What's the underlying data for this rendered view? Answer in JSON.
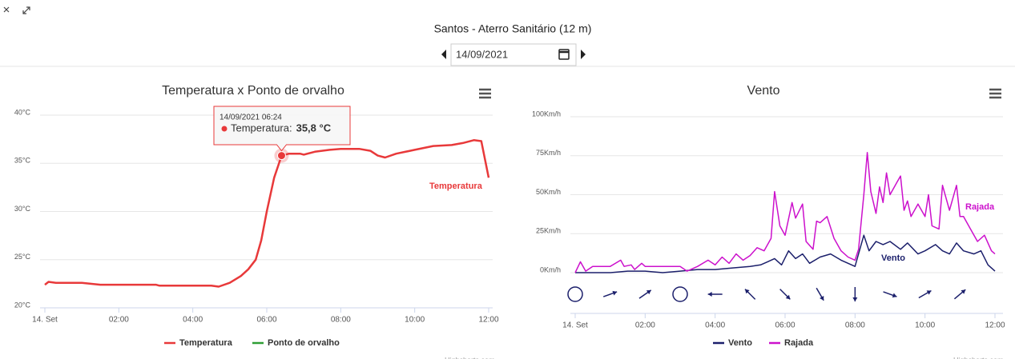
{
  "header": {
    "title": "Santos - Aterro Sanitário (12 m)",
    "date": "14/09/2021"
  },
  "credits": "Highcharts.com",
  "chart_data": [
    {
      "type": "line",
      "title": "Temperatura x Ponto de orvalho",
      "xlim": [
        0,
        12
      ],
      "ylim": [
        20,
        40
      ],
      "xticks": [
        {
          "value": 0,
          "label": "14. Set"
        },
        {
          "value": 2,
          "label": "02:00"
        },
        {
          "value": 4,
          "label": "04:00"
        },
        {
          "value": 6,
          "label": "06:00"
        },
        {
          "value": 8,
          "label": "08:00"
        },
        {
          "value": 10,
          "label": "10:00"
        },
        {
          "value": 12,
          "label": "12:00"
        }
      ],
      "yticks": [
        {
          "value": 20,
          "label": "20°C"
        },
        {
          "value": 25,
          "label": "25°C"
        },
        {
          "value": 30,
          "label": "30°C"
        },
        {
          "value": 35,
          "label": "35°C"
        },
        {
          "value": 40,
          "label": "40°C"
        }
      ],
      "grid": true,
      "series": [
        {
          "name": "Temperatura",
          "color": "#e8393a",
          "x": [
            0,
            0.1,
            0.3,
            1,
            1.5,
            2,
            3,
            3.1,
            4,
            4.5,
            4.7,
            5,
            5.3,
            5.5,
            5.7,
            5.85,
            6,
            6.2,
            6.4,
            6.6,
            6.9,
            7,
            7.3,
            7.7,
            8,
            8.5,
            8.8,
            9,
            9.2,
            9.5,
            10,
            10.5,
            11,
            11.3,
            11.6,
            11.8,
            12
          ],
          "values": [
            22.4,
            22.7,
            22.6,
            22.6,
            22.4,
            22.4,
            22.4,
            22.3,
            22.3,
            22.3,
            22.2,
            22.6,
            23.3,
            24.0,
            25.0,
            27.0,
            30.0,
            33.5,
            35.8,
            36.0,
            36.0,
            35.9,
            36.2,
            36.4,
            36.5,
            36.5,
            36.3,
            35.8,
            35.6,
            36.0,
            36.4,
            36.8,
            36.9,
            37.1,
            37.4,
            37.3,
            33.5
          ]
        },
        {
          "name": "Ponto de orvalho",
          "color": "#2e9e35",
          "x": [],
          "values": []
        }
      ],
      "tooltip": {
        "time": "14/09/2021 06:24",
        "series_label": "Temperatura:",
        "value_label": "35,8 °C",
        "x": 6.4,
        "value": 35.8
      }
    },
    {
      "type": "line",
      "title": "Vento",
      "xlim": [
        0,
        12
      ],
      "ylim": [
        0,
        100
      ],
      "xticks": [
        {
          "value": 0,
          "label": "14. Set"
        },
        {
          "value": 2,
          "label": "02:00"
        },
        {
          "value": 4,
          "label": "04:00"
        },
        {
          "value": 6,
          "label": "06:00"
        },
        {
          "value": 8,
          "label": "08:00"
        },
        {
          "value": 10,
          "label": "10:00"
        },
        {
          "value": 12,
          "label": "12:00"
        }
      ],
      "yticks": [
        {
          "value": 0,
          "label": "0Km/h"
        },
        {
          "value": 25,
          "label": "25Km/h"
        },
        {
          "value": 50,
          "label": "50Km/h"
        },
        {
          "value": 75,
          "label": "75Km/h"
        },
        {
          "value": 100,
          "label": "100Km/h"
        }
      ],
      "grid": true,
      "series": [
        {
          "name": "Vento",
          "color": "#1b1f6b",
          "x": [
            0,
            1,
            1.5,
            2,
            2.5,
            3,
            3.5,
            4,
            4.5,
            5,
            5.3,
            5.5,
            5.7,
            5.9,
            6.1,
            6.3,
            6.5,
            6.7,
            7,
            7.3,
            7.6,
            8,
            8.1,
            8.25,
            8.4,
            8.6,
            8.8,
            9,
            9.3,
            9.5,
            9.8,
            10,
            10.3,
            10.5,
            10.7,
            10.9,
            11.1,
            11.4,
            11.6,
            11.8,
            12
          ],
          "values": [
            0,
            0,
            1,
            1,
            0,
            1,
            2,
            2,
            3,
            4,
            5,
            7,
            9,
            5,
            14,
            9,
            12,
            6,
            10,
            12,
            8,
            4,
            12,
            24,
            14,
            20,
            18,
            20,
            15,
            19,
            12,
            14,
            18,
            14,
            12,
            19,
            14,
            12,
            14,
            5,
            1
          ]
        },
        {
          "name": "Rajada",
          "color": "#cc11cc",
          "x": [
            0,
            0.15,
            0.3,
            0.5,
            1,
            1.3,
            1.4,
            1.6,
            1.7,
            1.9,
            2,
            2.5,
            3,
            3.2,
            3.5,
            3.8,
            4,
            4.2,
            4.4,
            4.6,
            4.8,
            5,
            5.2,
            5.4,
            5.6,
            5.7,
            5.85,
            6,
            6.2,
            6.3,
            6.5,
            6.6,
            6.8,
            6.9,
            7,
            7.2,
            7.4,
            7.6,
            7.8,
            8,
            8.1,
            8.25,
            8.35,
            8.45,
            8.6,
            8.7,
            8.8,
            8.9,
            9,
            9.2,
            9.3,
            9.4,
            9.5,
            9.6,
            9.8,
            10,
            10.1,
            10.2,
            10.4,
            10.5,
            10.7,
            10.9,
            11,
            11.1,
            11.3,
            11.5,
            11.7,
            11.9,
            12
          ],
          "values": [
            0,
            7,
            1,
            4,
            4,
            8,
            4,
            5,
            2,
            6,
            4,
            4,
            4,
            1,
            4,
            8,
            5,
            10,
            6,
            12,
            8,
            11,
            16,
            14,
            22,
            52,
            30,
            24,
            45,
            35,
            44,
            20,
            15,
            33,
            32,
            36,
            22,
            14,
            10,
            8,
            15,
            50,
            77,
            52,
            38,
            55,
            45,
            64,
            50,
            58,
            62,
            40,
            46,
            36,
            44,
            36,
            50,
            30,
            28,
            56,
            40,
            56,
            36,
            36,
            28,
            20,
            24,
            14,
            12
          ]
        }
      ],
      "direction_x": [
        0,
        1,
        2,
        3,
        4,
        5,
        6,
        7,
        8,
        9,
        10,
        11
      ],
      "directions": [
        null,
        70,
        55,
        null,
        270,
        315,
        135,
        150,
        180,
        110,
        60,
        50
      ]
    }
  ]
}
